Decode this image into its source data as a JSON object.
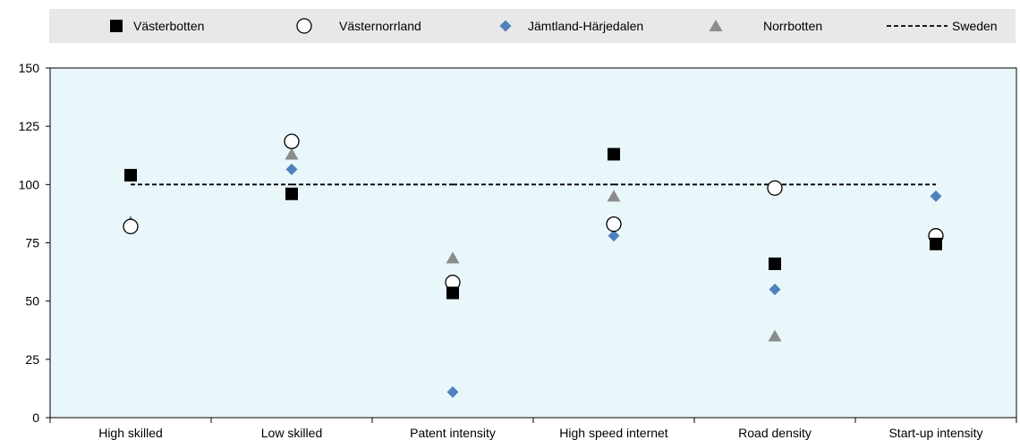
{
  "chart_data": {
    "type": "scatter",
    "categories": [
      "High skilled",
      "Low skilled",
      "Patent intensity",
      "High speed internet",
      "Road density",
      "Start-up intensity"
    ],
    "ylim": [
      0,
      150
    ],
    "yticks": [
      0,
      25,
      50,
      75,
      100,
      125,
      150
    ],
    "grid": false,
    "legend_position": "top",
    "series": [
      {
        "name": "Västerbotten",
        "marker": "square",
        "color": "#000000",
        "values": [
          104,
          96,
          53.5,
          113,
          66,
          74.5
        ]
      },
      {
        "name": "Västernorrland",
        "marker": "circle-open",
        "color": "#000000",
        "values": [
          82,
          118.5,
          58,
          83,
          98.5,
          78
        ]
      },
      {
        "name": "Jämtland-Härjedalen",
        "marker": "diamond",
        "color": "#4f81bd",
        "values": [
          83.5,
          106.5,
          11,
          78,
          55,
          95
        ]
      },
      {
        "name": "Norrbotten",
        "marker": "triangle",
        "color": "#8c8c8c",
        "values": [
          84,
          113,
          68.5,
          95,
          35,
          76.5
        ]
      }
    ],
    "reference": {
      "name": "Sweden",
      "value": 100,
      "style": "dashed",
      "color": "#000000"
    },
    "colors": {
      "plot_background": "#eaf7fa",
      "legend_background": "#e8e8e8"
    }
  }
}
